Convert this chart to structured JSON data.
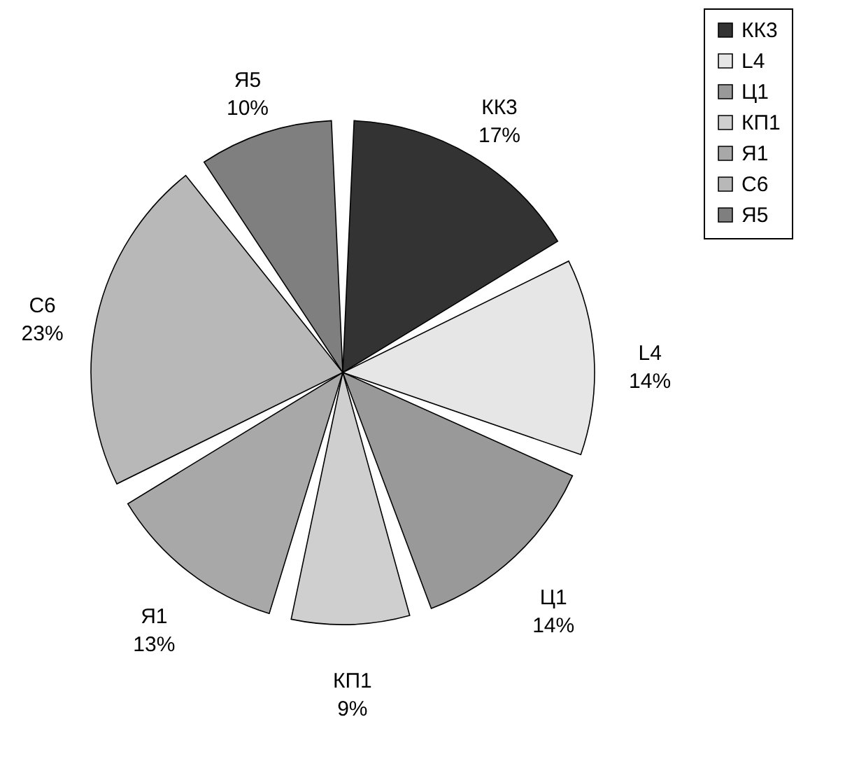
{
  "chart_data": {
    "type": "pie",
    "categories": [
      "КК3",
      "L4",
      "Ц1",
      "КП1",
      "Я1",
      "С6",
      "Я5"
    ],
    "values": [
      17,
      14,
      14,
      9,
      13,
      23,
      10
    ],
    "value_labels": [
      "17%",
      "14%",
      "14%",
      "9%",
      "13%",
      "23%",
      "10%"
    ],
    "colors": [
      "#333333",
      "#e6e6e6",
      "#999999",
      "#cfcfcf",
      "#a8a8a8",
      "#b8b8b8",
      "#7f7f7f"
    ],
    "legend": "right"
  }
}
